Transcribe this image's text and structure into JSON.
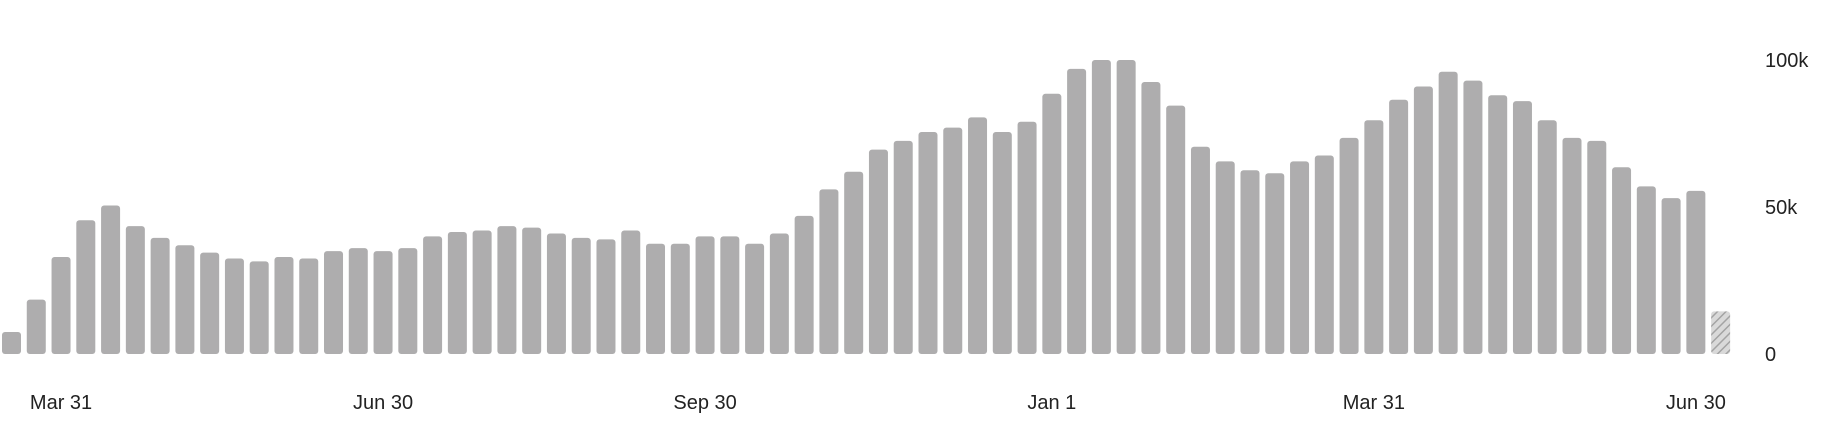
{
  "chart_data": {
    "type": "bar",
    "title": "",
    "xlabel": "",
    "ylabel": "",
    "ylim": [
      0,
      100000
    ],
    "yticks": [
      {
        "value": 0,
        "label": "0"
      },
      {
        "value": 50000,
        "label": "50k"
      },
      {
        "value": 100000,
        "label": "100k"
      }
    ],
    "y_axis_side": "right",
    "grid": false,
    "legend": "none",
    "bar_color": "#aeadae",
    "partial_color": "#aeadae",
    "xtick_labels": [
      {
        "index": 2,
        "label": "Mar 31"
      },
      {
        "index": 15,
        "label": "Jun 30"
      },
      {
        "index": 28,
        "label": "Sep 30"
      },
      {
        "index": 42,
        "label": "Jan 1"
      },
      {
        "index": 55,
        "label": "Mar 31"
      },
      {
        "index": 68,
        "label": "Jun 30"
      }
    ],
    "values": [
      7500,
      18500,
      33000,
      45500,
      50500,
      43500,
      39500,
      37000,
      34500,
      32500,
      31500,
      33000,
      32500,
      35000,
      36000,
      35000,
      36000,
      40000,
      41500,
      42000,
      43500,
      43000,
      41000,
      39500,
      39000,
      42000,
      37500,
      37500,
      40000,
      40000,
      37500,
      41000,
      47000,
      56000,
      62000,
      69500,
      72500,
      75500,
      77000,
      80500,
      75500,
      79000,
      88500,
      97000,
      100000,
      100000,
      92500,
      84500,
      70500,
      65500,
      62500,
      61500,
      65500,
      67500,
      73500,
      79500,
      86500,
      91000,
      96000,
      93000,
      88000,
      86000,
      79500,
      73500,
      72500,
      63500,
      57000,
      53000,
      55500,
      14500
    ],
    "partial_last": true
  }
}
